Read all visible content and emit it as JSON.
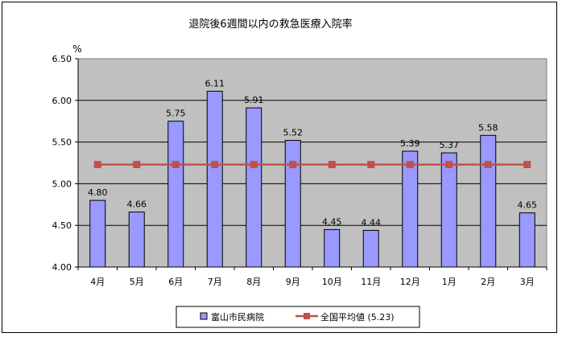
{
  "chart_data": {
    "type": "bar",
    "title": "退院後6週間以内の救急医療入院率",
    "ylabel": "%",
    "xlabel": "",
    "ylim": [
      4.0,
      6.5
    ],
    "yticks": [
      "4.00",
      "4.50",
      "5.00",
      "5.50",
      "6.00",
      "6.50"
    ],
    "categories": [
      "4月",
      "5月",
      "6月",
      "7月",
      "8月",
      "9月",
      "10月",
      "11月",
      "12月",
      "1月",
      "2月",
      "3月"
    ],
    "series": [
      {
        "name": "富山市民病院",
        "kind": "bar",
        "color": "#9999ff",
        "values": [
          4.8,
          4.66,
          5.75,
          6.11,
          5.91,
          5.52,
          4.45,
          4.44,
          5.39,
          5.37,
          5.58,
          4.65
        ],
        "labels": [
          "4.80",
          "4.66",
          "5.75",
          "6.11",
          "5.91",
          "5.52",
          "4.45",
          "4.44",
          "5.39",
          "5.37",
          "5.58",
          "4.65"
        ]
      },
      {
        "name": "全国平均値 (5.23)",
        "kind": "line",
        "color": "#c0504d",
        "values": [
          5.23,
          5.23,
          5.23,
          5.23,
          5.23,
          5.23,
          5.23,
          5.23,
          5.23,
          5.23,
          5.23,
          5.23
        ]
      }
    ],
    "grid": true,
    "plot_background": "#c0c0c0",
    "legend_position": "bottom"
  }
}
